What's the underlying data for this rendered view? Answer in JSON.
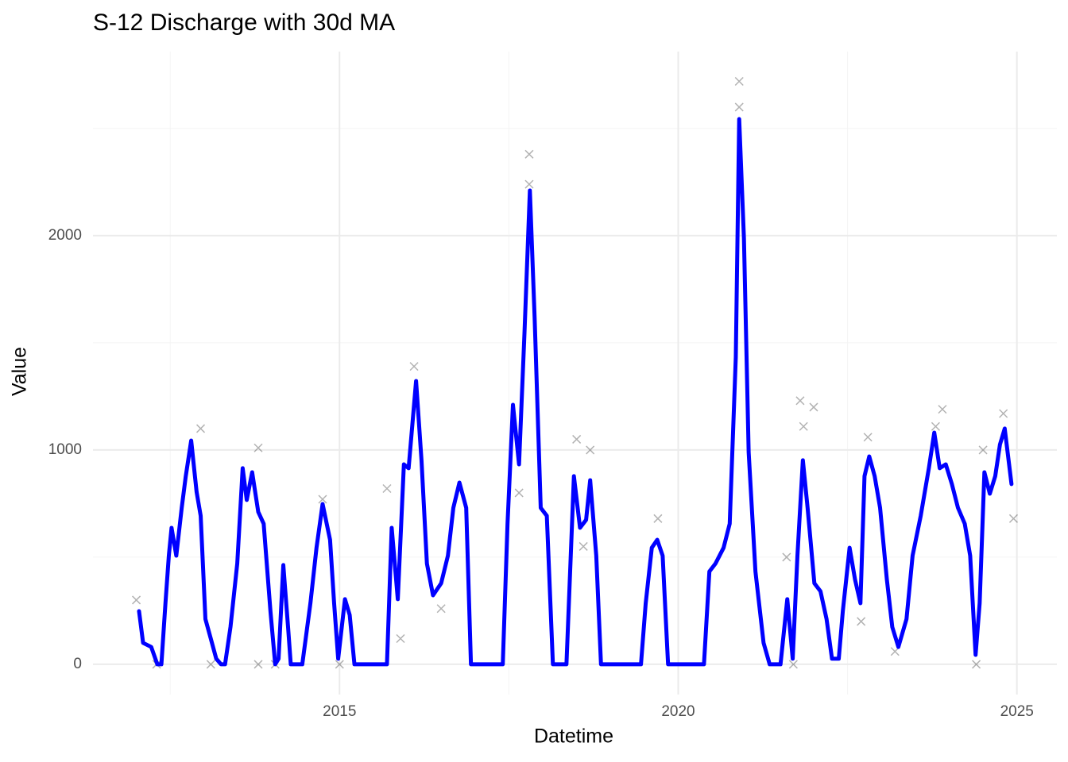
{
  "chart_data": {
    "type": "line",
    "title": "S-12 Discharge with 30d MA",
    "x_label": "Datetime",
    "y_label": "Value",
    "xlim": [
      2011.36,
      2025.59
    ],
    "ylim": [
      -141,
      2859
    ],
    "xticks": [
      2015,
      2020,
      2025
    ],
    "yticks": [
      0,
      1000,
      2000
    ],
    "x_minor_grid": [
      2012.5,
      2017.5,
      2022.5
    ],
    "y_minor_grid": [
      500,
      1500,
      2500
    ],
    "grid": true,
    "series": [
      {
        "type": "scatter",
        "color": "#000000",
        "x": [
          2012.0,
          2012.3,
          2012.95,
          2013.1,
          2013.8,
          2013.8,
          2014.05,
          2014.75,
          2015.0,
          2015.7,
          2015.9,
          2016.1,
          2016.5,
          2017.65,
          2017.8,
          2017.8,
          2018.5,
          2018.6,
          2018.7,
          2019.7,
          2020.9,
          2020.9,
          2021.6,
          2021.7,
          2021.8,
          2021.85,
          2022.0,
          2022.7,
          2022.8,
          2023.2,
          2023.8,
          2023.9,
          2024.4,
          2024.5,
          2024.8,
          2024.95
        ],
        "values": [
          300,
          0,
          1100,
          0,
          1010,
          0,
          0,
          770,
          0,
          820,
          120,
          1390,
          260,
          800,
          2380,
          2240,
          1050,
          550,
          1000,
          680,
          2720,
          2600,
          500,
          0,
          1230,
          1110,
          1200,
          200,
          1060,
          60,
          1110,
          1190,
          0,
          1000,
          1170,
          680
        ]
      },
      {
        "type": "line",
        "color": "#0000ff",
        "x": [
          2012.04,
          2012.1,
          2012.22,
          2012.31,
          2012.37,
          2012.43,
          2012.48,
          2012.52,
          2012.59,
          2012.67,
          2012.73,
          2012.81,
          2012.89,
          2012.95,
          2013.02,
          2013.1,
          2013.18,
          2013.25,
          2013.31,
          2013.39,
          2013.49,
          2013.57,
          2013.63,
          2013.71,
          2013.8,
          2013.88,
          2013.98,
          2014.05,
          2014.1,
          2014.17,
          2014.24,
          2014.28,
          2014.45,
          2014.57,
          2014.66,
          2014.75,
          2014.86,
          2014.92,
          2014.98,
          2015.08,
          2015.15,
          2015.22,
          2015.7,
          2015.77,
          2015.86,
          2015.95,
          2016.02,
          2016.13,
          2016.21,
          2016.29,
          2016.38,
          2016.5,
          2016.6,
          2016.68,
          2016.77,
          2016.87,
          2016.94,
          2017.41,
          2017.48,
          2017.56,
          2017.65,
          2017.73,
          2017.81,
          2017.88,
          2017.97,
          2018.06,
          2018.15,
          2018.35,
          2018.46,
          2018.55,
          2018.64,
          2018.7,
          2018.79,
          2018.86,
          2019.45,
          2019.52,
          2019.61,
          2019.69,
          2019.77,
          2019.85,
          2020.38,
          2020.46,
          2020.55,
          2020.67,
          2020.76,
          2020.85,
          2020.9,
          2020.97,
          2021.04,
          2021.14,
          2021.26,
          2021.35,
          2021.51,
          2021.61,
          2021.69,
          2021.76,
          2021.84,
          2021.91,
          2022.01,
          2022.1,
          2022.19,
          2022.27,
          2022.37,
          2022.43,
          2022.53,
          2022.61,
          2022.69,
          2022.75,
          2022.82,
          2022.9,
          2022.98,
          2023.08,
          2023.16,
          2023.25,
          2023.37,
          2023.46,
          2023.58,
          2023.7,
          2023.78,
          2023.86,
          2023.95,
          2024.04,
          2024.13,
          2024.23,
          2024.31,
          2024.39,
          2024.45,
          2024.52,
          2024.6,
          2024.68,
          2024.75,
          2024.82,
          2024.92
        ],
        "values": [
          248,
          100,
          81,
          0,
          0,
          285,
          507,
          637,
          507,
          730,
          878,
          1044,
          804,
          693,
          211,
          119,
          26,
          0,
          0,
          174,
          470,
          915,
          767,
          896,
          711,
          656,
          248,
          0,
          26,
          463,
          174,
          0,
          0,
          285,
          544,
          748,
          581,
          285,
          26,
          304,
          230,
          0,
          0,
          637,
          304,
          933,
          915,
          1322,
          952,
          470,
          322,
          378,
          507,
          730,
          848,
          730,
          0,
          0,
          656,
          1211,
          933,
          1544,
          2211,
          1619,
          730,
          693,
          0,
          0,
          878,
          637,
          674,
          859,
          507,
          0,
          0,
          285,
          544,
          581,
          507,
          0,
          0,
          433,
          470,
          544,
          656,
          1433,
          2544,
          1989,
          989,
          433,
          100,
          0,
          0,
          304,
          26,
          507,
          952,
          730,
          378,
          341,
          211,
          26,
          26,
          248,
          544,
          396,
          285,
          878,
          970,
          878,
          730,
          396,
          174,
          81,
          211,
          507,
          693,
          915,
          1081,
          915,
          933,
          841,
          730,
          656,
          507,
          44,
          285,
          896,
          796,
          878,
          1026,
          1100,
          841
        ]
      }
    ]
  }
}
